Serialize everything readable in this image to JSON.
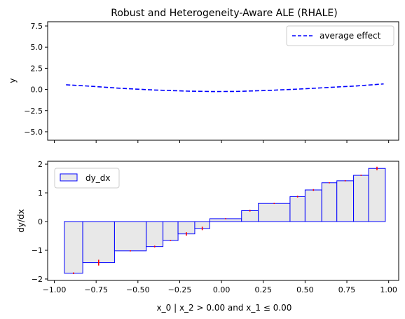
{
  "chart_data": [
    {
      "type": "line",
      "title": "Robust and Heterogeneity-Aware ALE (RHALE)",
      "xlabel": "",
      "ylabel": "y",
      "xlim": [
        -1.04,
        1.06
      ],
      "ylim": [
        -6,
        8
      ],
      "yticks": [
        "−5.0",
        "−2.5",
        "0.0",
        "2.5",
        "5.0",
        "7.5"
      ],
      "ytick_values": [
        -5,
        -2.5,
        0,
        2.5,
        5,
        7.5
      ],
      "series": [
        {
          "name": "average effect",
          "style": "dashed",
          "color": "#0000ff",
          "x": [
            -0.93,
            -0.8,
            -0.6,
            -0.4,
            -0.2,
            -0.05,
            0.1,
            0.3,
            0.5,
            0.7,
            0.8,
            0.97
          ],
          "y": [
            0.55,
            0.4,
            0.13,
            -0.07,
            -0.2,
            -0.25,
            -0.23,
            -0.1,
            0.08,
            0.3,
            0.4,
            0.65
          ]
        }
      ],
      "legend_position": "top-right"
    },
    {
      "type": "bar",
      "title": "",
      "xlabel": "x_0 | x_2 > 0.00 and x_1 ≤ 0.00",
      "ylabel": "dy/dx",
      "xlim": [
        -1.04,
        1.06
      ],
      "ylim": [
        -2.05,
        2.1
      ],
      "xticks": [
        "−1.00",
        "−0.75",
        "−0.50",
        "−0.25",
        "0.00",
        "0.25",
        "0.50",
        "0.75",
        "1.00"
      ],
      "xtick_values": [
        -1,
        -0.75,
        -0.5,
        -0.25,
        0,
        0.25,
        0.5,
        0.75,
        1
      ],
      "yticks": [
        "−2",
        "−1",
        "0",
        "1",
        "2"
      ],
      "ytick_values": [
        -2,
        -1,
        0,
        1,
        2
      ],
      "series_name": "dy_dx",
      "fill_color": "#e8e8e8",
      "edge_color": "#0000ff",
      "error_color": "#ff0000",
      "bins": [
        {
          "x0": -0.94,
          "x1": -0.83,
          "value": -1.8,
          "err": 0.03
        },
        {
          "x0": -0.83,
          "x1": -0.64,
          "value": -1.43,
          "err": 0.1
        },
        {
          "x0": -0.64,
          "x1": -0.45,
          "value": -1.02,
          "err": 0.02
        },
        {
          "x0": -0.45,
          "x1": -0.35,
          "value": -0.87,
          "err": 0.03
        },
        {
          "x0": -0.35,
          "x1": -0.26,
          "value": -0.66,
          "err": 0.02
        },
        {
          "x0": -0.26,
          "x1": -0.16,
          "value": -0.43,
          "err": 0.06
        },
        {
          "x0": -0.16,
          "x1": -0.07,
          "value": -0.24,
          "err": 0.06
        },
        {
          "x0": -0.07,
          "x1": 0.12,
          "value": 0.1,
          "err": 0.01
        },
        {
          "x0": 0.12,
          "x1": 0.22,
          "value": 0.38,
          "err": 0.03
        },
        {
          "x0": 0.22,
          "x1": 0.41,
          "value": 0.63,
          "err": 0.02
        },
        {
          "x0": 0.41,
          "x1": 0.5,
          "value": 0.87,
          "err": 0.03
        },
        {
          "x0": 0.5,
          "x1": 0.6,
          "value": 1.1,
          "err": 0.03
        },
        {
          "x0": 0.6,
          "x1": 0.69,
          "value": 1.35,
          "err": 0.01
        },
        {
          "x0": 0.69,
          "x1": 0.79,
          "value": 1.42,
          "err": 0.01
        },
        {
          "x0": 0.79,
          "x1": 0.88,
          "value": 1.61,
          "err": 0.01
        },
        {
          "x0": 0.88,
          "x1": 0.98,
          "value": 1.85,
          "err": 0.06
        }
      ],
      "legend_position": "top-left"
    }
  ]
}
